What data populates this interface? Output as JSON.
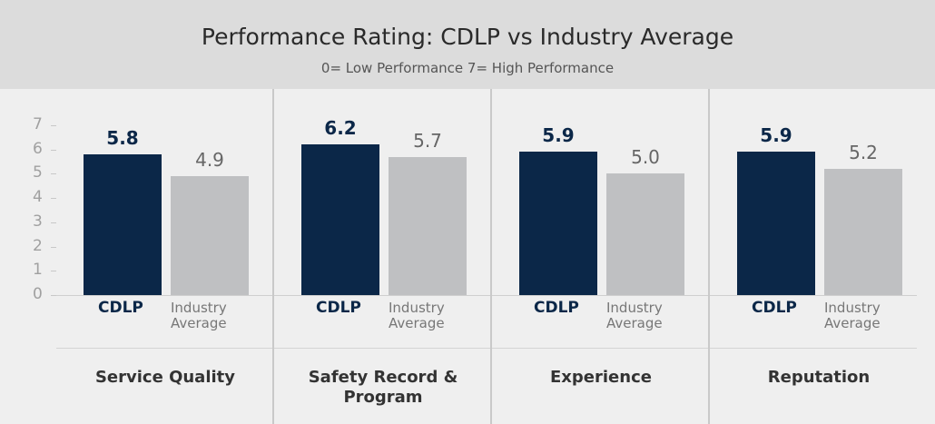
{
  "chart_data": {
    "type": "bar",
    "title": "Performance Rating: CDLP vs Industry Average",
    "subtitle": "0= Low Performance  7= High Performance",
    "categories": [
      "Service Quality",
      "Safety Record & Program",
      "Experience",
      "Reputation"
    ],
    "series": [
      {
        "name": "CDLP",
        "color": "#0b2748",
        "values": [
          5.8,
          6.2,
          5.9,
          5.9
        ]
      },
      {
        "name": "Industry Average",
        "color": "#bfc0c2",
        "values": [
          4.9,
          5.7,
          5.0,
          5.2
        ],
        "value_labels": [
          "4.9",
          "5.7",
          "5.0",
          "5.2"
        ]
      }
    ],
    "ylim": [
      0,
      7
    ],
    "yticks": [
      0,
      1,
      2,
      3,
      4,
      5,
      6,
      7
    ]
  }
}
